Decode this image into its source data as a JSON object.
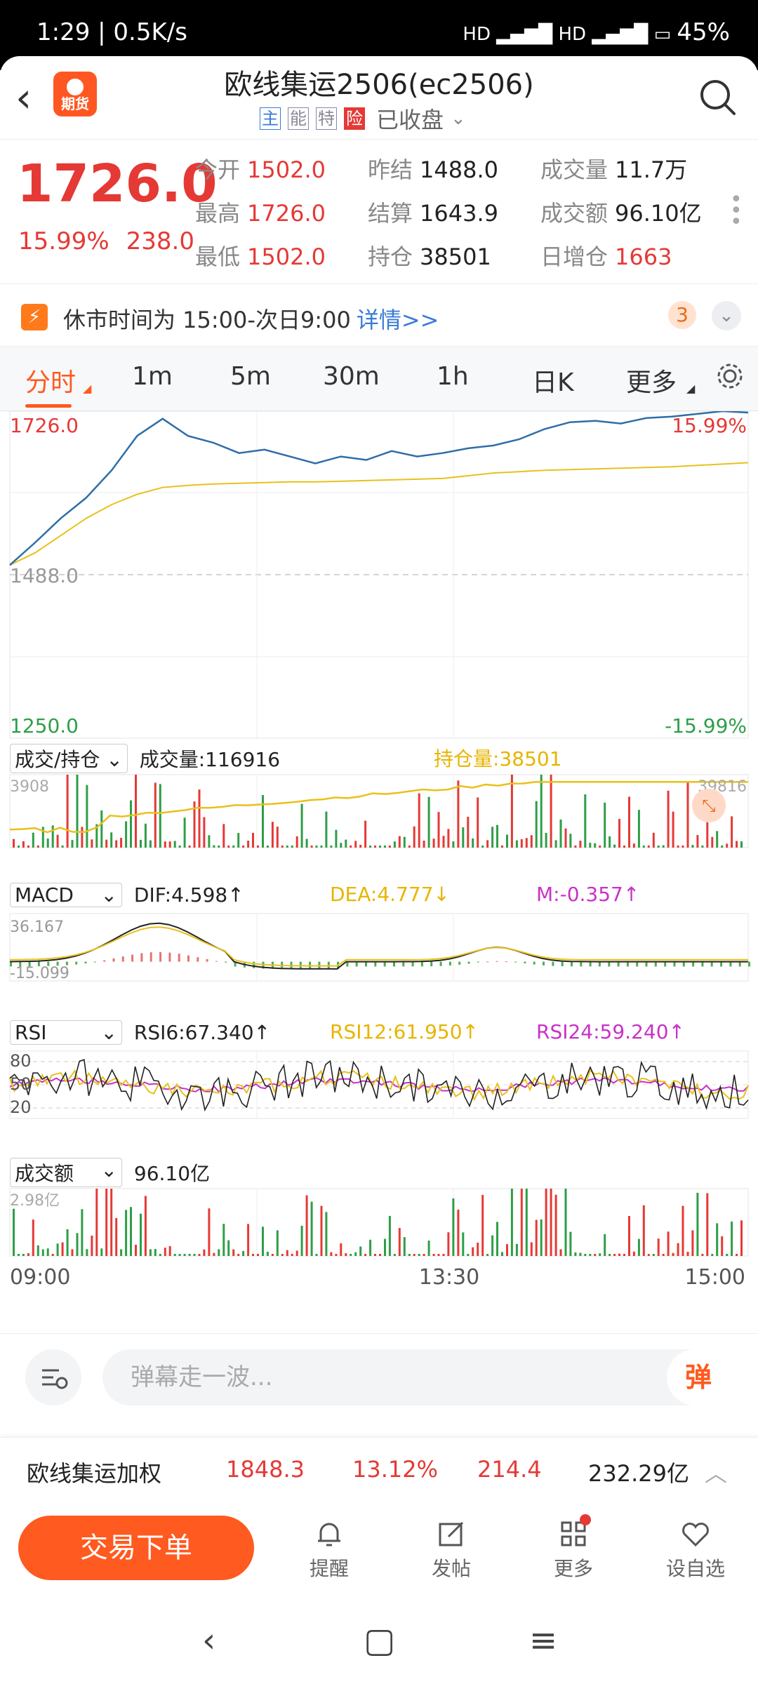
{
  "status_bar": {
    "time_speed": "1:29 | 0.5K/s",
    "battery": "45%"
  },
  "header": {
    "title": "欧线集运2506(ec2506)",
    "tags": [
      "主",
      "能",
      "特",
      "险"
    ],
    "market_status": "已收盘",
    "logo_text": "期货"
  },
  "quote": {
    "price": "1726.0",
    "change_pct": "15.99%",
    "change": "238.0",
    "fields": [
      {
        "label": "今开",
        "value": "1502.0"
      },
      {
        "label": "昨结",
        "value": "1488.0"
      },
      {
        "label": "成交量",
        "value": "11.7万"
      },
      {
        "label": "最高",
        "value": "1726.0"
      },
      {
        "label": "结算",
        "value": "1643.9"
      },
      {
        "label": "成交额",
        "value": "96.10亿"
      },
      {
        "label": "最低",
        "value": "1502.0"
      },
      {
        "label": "持仓",
        "value": "38501"
      },
      {
        "label": "日增仓",
        "value": "1663"
      }
    ]
  },
  "notice": {
    "text": "休市时间为 15:00-次日9:00",
    "link": "详情>>",
    "badge": "3"
  },
  "tabs": [
    "分时",
    "1m",
    "5m",
    "30m",
    "1h",
    "日K",
    "更多"
  ],
  "colors": {
    "accent": "#ff5a1f",
    "up": "#e53935",
    "down": "#2e9e47",
    "price_line": "#2f6ea8",
    "avg_line": "#e8c11c",
    "macd_dea": "#e8c11c",
    "rsi24": "#c832c8"
  },
  "chart_data": {
    "type": "line",
    "price_panel": {
      "y_top": "1726.0",
      "y_mid": "1488.0",
      "y_bottom": "1250.0",
      "pct_top": "15.99%",
      "pct_bottom": "-15.99%",
      "ylim": [
        1250,
        1726
      ]
    },
    "x_ticks": [
      "09:00",
      "13:30",
      "15:00"
    ],
    "price": [
      1502,
      1535,
      1570,
      1600,
      1640,
      1690,
      1715,
      1690,
      1680,
      1665,
      1670,
      1660,
      1650,
      1660,
      1655,
      1668,
      1660,
      1665,
      1672,
      1676,
      1685,
      1700,
      1710,
      1712,
      1708,
      1716,
      1718,
      1722,
      1726,
      1724
    ],
    "avg": [
      1502,
      1520,
      1545,
      1570,
      1590,
      1605,
      1615,
      1618,
      1620,
      1621,
      1622,
      1623,
      1623,
      1624,
      1625,
      1626,
      1627,
      1628,
      1632,
      1636,
      1638,
      1640,
      1641,
      1642,
      1643,
      1644,
      1645,
      1647,
      1649,
      1651
    ],
    "volume_panel": {
      "selector": "成交/持仓",
      "volume_text": "成交量:116916",
      "oi_text": "持仓量:38501",
      "ymax_left": "3908",
      "ymax_right": "39816"
    },
    "macd_panel": {
      "selector": "MACD",
      "dif": "DIF:4.598↑",
      "dea": "DEA:4.777↓",
      "m": "M:-0.357↑",
      "ymax": "36.167",
      "ymin": "-15.099"
    },
    "rsi_panel": {
      "selector": "RSI",
      "rsi6": "RSI6:67.340↑",
      "rsi12": "RSI12:61.950↑",
      "rsi24": "RSI24:59.240↑",
      "levels": [
        "80",
        "50",
        "20"
      ]
    },
    "amount_panel": {
      "selector": "成交额",
      "value": "96.10亿",
      "ymax": "2.98亿"
    }
  },
  "danmu": {
    "placeholder": "弹幕走一波...",
    "button": "弹"
  },
  "index_row": {
    "name": "欧线集运加权",
    "price": "1848.3",
    "pct": "13.12%",
    "change": "214.4",
    "amount": "232.29亿"
  },
  "bottom_nav": {
    "trade": "交易下单",
    "items": [
      "提醒",
      "发帖",
      "更多",
      "设自选"
    ]
  }
}
